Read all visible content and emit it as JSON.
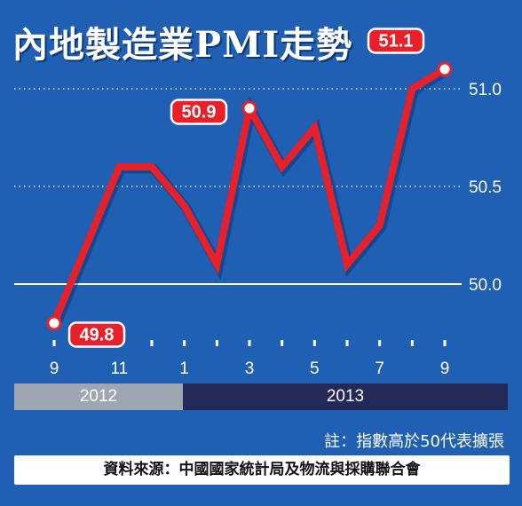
{
  "title": "內地製造業PMI走勢",
  "note": "註：指數高於50代表擴張",
  "source": "資料來源：中國國家統計局及物流與採購聯合會",
  "colors": {
    "background": "#1f60b4",
    "line": "#e8202a",
    "year_2012": "#9ea7b1",
    "year_2013": "#24295a"
  },
  "years": [
    "2012",
    "2013"
  ],
  "chart_data": {
    "type": "line",
    "title": "內地製造業PMI走勢",
    "xlabel": "",
    "ylabel": "",
    "x": [
      "2012-09",
      "2012-10",
      "2012-11",
      "2012-12",
      "2013-01",
      "2013-02",
      "2013-03",
      "2013-04",
      "2013-05",
      "2013-06",
      "2013-07",
      "2013-08",
      "2013-09"
    ],
    "x_tick_labels": [
      "9",
      "11",
      "1",
      "3",
      "5",
      "7",
      "9"
    ],
    "series": [
      {
        "values": [
          49.8,
          50.2,
          50.6,
          50.6,
          50.4,
          50.1,
          50.9,
          50.6,
          50.8,
          50.1,
          50.3,
          51.0,
          51.1
        ]
      }
    ],
    "y_ticks": [
      "50.0",
      "50.5",
      "51.0"
    ],
    "ylim": [
      49.8,
      51.1
    ],
    "annotations": [
      {
        "x": "2012-09",
        "text": "49.8"
      },
      {
        "x": "2013-03",
        "text": "50.9"
      },
      {
        "x": "2013-09",
        "text": "51.1"
      }
    ],
    "grid": true,
    "legend": "none"
  }
}
